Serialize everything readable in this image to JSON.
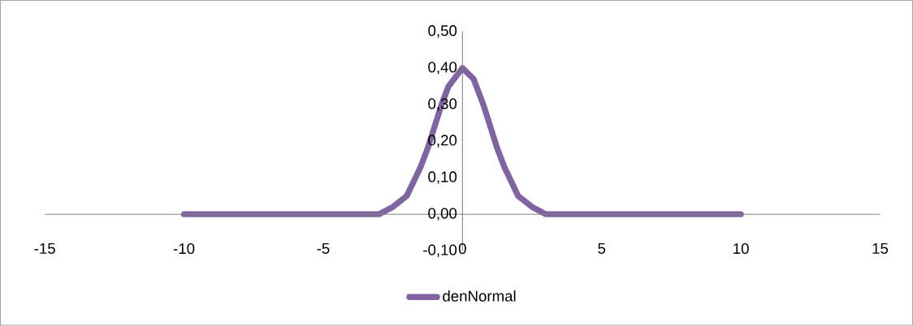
{
  "chart_data": {
    "type": "line",
    "x": [
      -10,
      -5,
      -4,
      -3,
      -2.5,
      -2,
      -1.75,
      -1.5,
      -1.25,
      -1,
      -0.75,
      -0.5,
      0,
      0.4,
      0.75,
      1,
      1.25,
      1.5,
      1.75,
      2,
      2.5,
      3,
      4,
      5,
      10
    ],
    "series": [
      {
        "name": "denNormal",
        "color": "#8064a2",
        "values": [
          0,
          0,
          0,
          0.0,
          0.02,
          0.05,
          0.09,
          0.13,
          0.18,
          0.24,
          0.3,
          0.35,
          0.4,
          0.37,
          0.3,
          0.24,
          0.18,
          0.13,
          0.09,
          0.05,
          0.02,
          0.0,
          0,
          0,
          0
        ]
      }
    ],
    "xlim": [
      -15,
      15
    ],
    "xticks": [
      -15,
      -10,
      -5,
      0,
      5,
      10,
      15
    ],
    "ylim": [
      -0.1,
      0.5
    ],
    "yticks": [
      {
        "value": -0.1,
        "label": "-0,10"
      },
      {
        "value": 0,
        "label": "0,00"
      },
      {
        "value": 0.1,
        "label": "0,10"
      },
      {
        "value": 0.2,
        "label": "0,20"
      },
      {
        "value": 0.3,
        "label": "0,30"
      },
      {
        "value": 0.4,
        "label": "0,40"
      },
      {
        "value": 0.5,
        "label": "0,50"
      }
    ],
    "legend": "bottom",
    "grid": false,
    "marker": "none",
    "line_style": "solid"
  }
}
